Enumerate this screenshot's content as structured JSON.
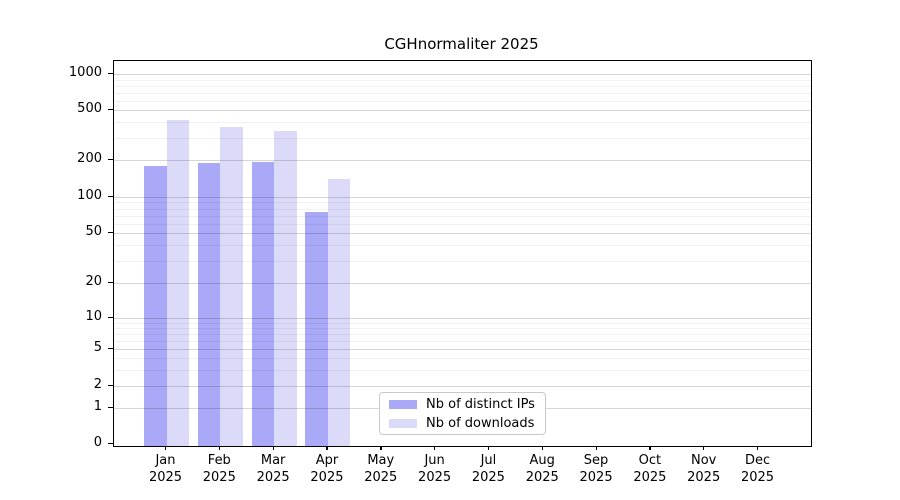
{
  "title": "CGHnormaliter 2025",
  "colors": {
    "distinct_ips_bar": "#a9a9f7",
    "downloads_bar": "#dbdbf9",
    "axis": "#000000",
    "background": "#ffffff",
    "legend_border": "#c9c9c9"
  },
  "chart_data": {
    "type": "bar",
    "title": "CGHnormaliter 2025",
    "xlabel": "",
    "ylabel": "",
    "yscale": "symlog",
    "yticks": [
      0,
      1,
      2,
      5,
      10,
      20,
      50,
      100,
      200,
      500,
      1000
    ],
    "ylim": [
      0,
      1250
    ],
    "grid": "horizontal, major and minor log lines, drawn over bars",
    "legend_position": "lower center, inside axes",
    "categories": [
      "Jan 2025",
      "Feb 2025",
      "Mar 2025",
      "Apr 2025",
      "May 2025",
      "Jun 2025",
      "Jul 2025",
      "Aug 2025",
      "Sep 2025",
      "Oct 2025",
      "Nov 2025",
      "Dec 2025"
    ],
    "series": [
      {
        "name": "Nb of distinct IPs",
        "color": "#a9a9f7",
        "values": [
          178,
          188,
          193,
          75,
          null,
          null,
          null,
          null,
          null,
          null,
          null,
          null
        ]
      },
      {
        "name": "Nb of downloads",
        "color": "#dbdbf9",
        "values": [
          420,
          370,
          340,
          140,
          null,
          null,
          null,
          null,
          null,
          null,
          null,
          null
        ]
      }
    ]
  }
}
